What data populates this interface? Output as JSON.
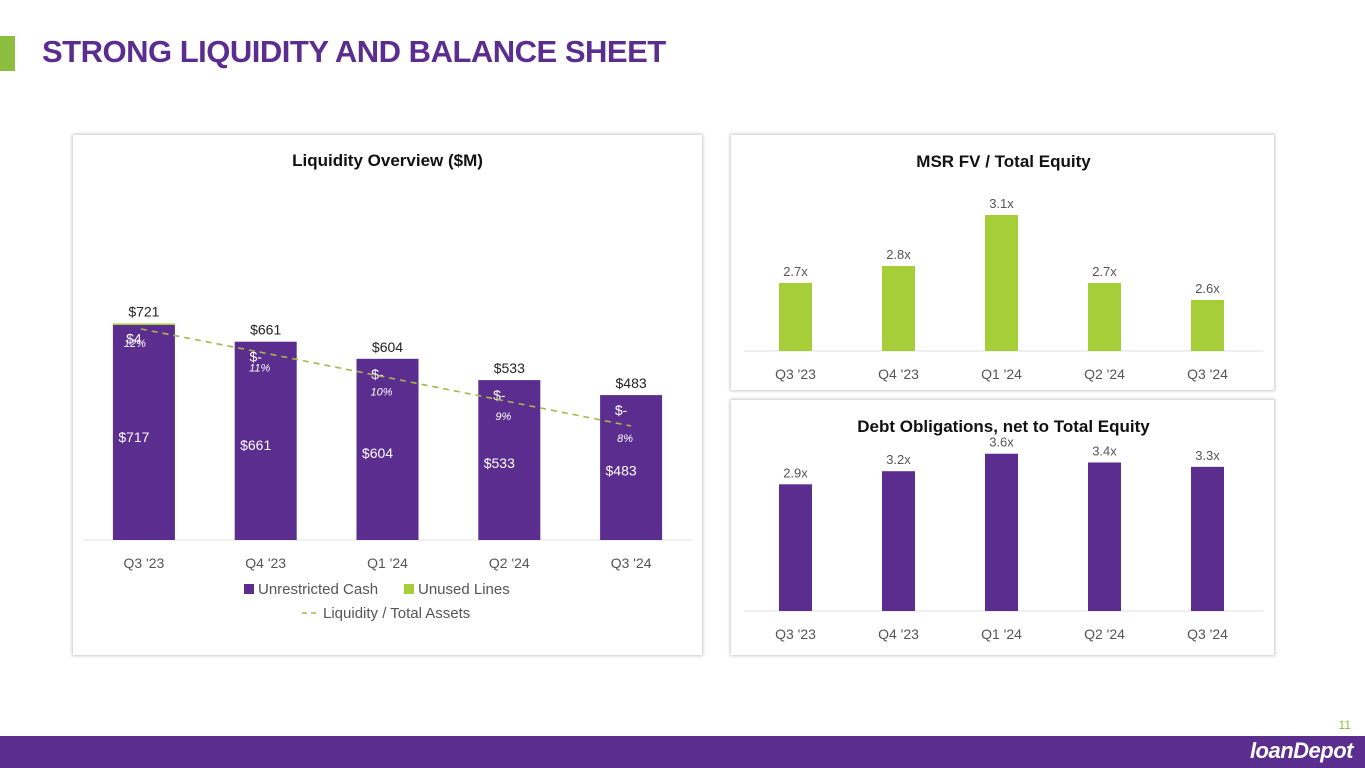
{
  "page": {
    "title": "STRONG LIQUIDITY AND BALANCE SHEET",
    "page_number": "11",
    "logo_text": "loanDepot"
  },
  "colors": {
    "purple": "#5b2d8e",
    "green": "#a6ce39",
    "accent_green": "#8cbd3f",
    "dashed_line": "#a6b84a"
  },
  "chart_data": [
    {
      "id": "liquidity",
      "type": "bar",
      "stacked": true,
      "title": "Liquidity Overview ($M)",
      "categories": [
        "Q3 '23",
        "Q4 '23",
        "Q1 '24",
        "Q2 '24",
        "Q3 '24"
      ],
      "series": [
        {
          "name": "Unrestricted Cash",
          "values": [
            717,
            661,
            604,
            533,
            483
          ],
          "labels": [
            "$717",
            "$661",
            "$604",
            "$533",
            "$483"
          ]
        },
        {
          "name": "Unused Lines",
          "values": [
            4,
            0,
            0,
            0,
            0
          ],
          "labels": [
            "$4",
            "$-",
            "$-",
            "$-",
            "$-"
          ]
        }
      ],
      "totals": [
        "$721",
        "$661",
        "$604",
        "$533",
        "$483"
      ],
      "line_series": {
        "name": "Liquidity / Total Assets",
        "values": [
          12,
          11,
          10,
          9,
          8
        ],
        "labels": [
          "12%",
          "11%",
          "10%",
          "9%",
          "8%"
        ],
        "style": "dashed"
      },
      "legend": [
        "Unrestricted Cash",
        "Unused Lines",
        "Liquidity / Total Assets"
      ],
      "ylim": [
        0,
        800
      ]
    },
    {
      "id": "msr",
      "type": "bar",
      "title": "MSR FV / Total Equity",
      "categories": [
        "Q3 '23",
        "Q4 '23",
        "Q1 '24",
        "Q2 '24",
        "Q3 '24"
      ],
      "values": [
        2.7,
        2.8,
        3.1,
        2.7,
        2.6
      ],
      "labels": [
        "2.7x",
        "2.8x",
        "3.1x",
        "2.7x",
        "2.6x"
      ],
      "ylim": [
        2.3,
        3.2
      ]
    },
    {
      "id": "debt",
      "type": "bar",
      "title": "Debt Obligations, net to Total Equity",
      "categories": [
        "Q3 '23",
        "Q4 '23",
        "Q1 '24",
        "Q2 '24",
        "Q3 '24"
      ],
      "values": [
        2.9,
        3.2,
        3.6,
        3.4,
        3.3
      ],
      "labels": [
        "2.9x",
        "3.2x",
        "3.6x",
        "3.4x",
        "3.3x"
      ],
      "ylim": [
        0,
        3.8
      ]
    }
  ]
}
